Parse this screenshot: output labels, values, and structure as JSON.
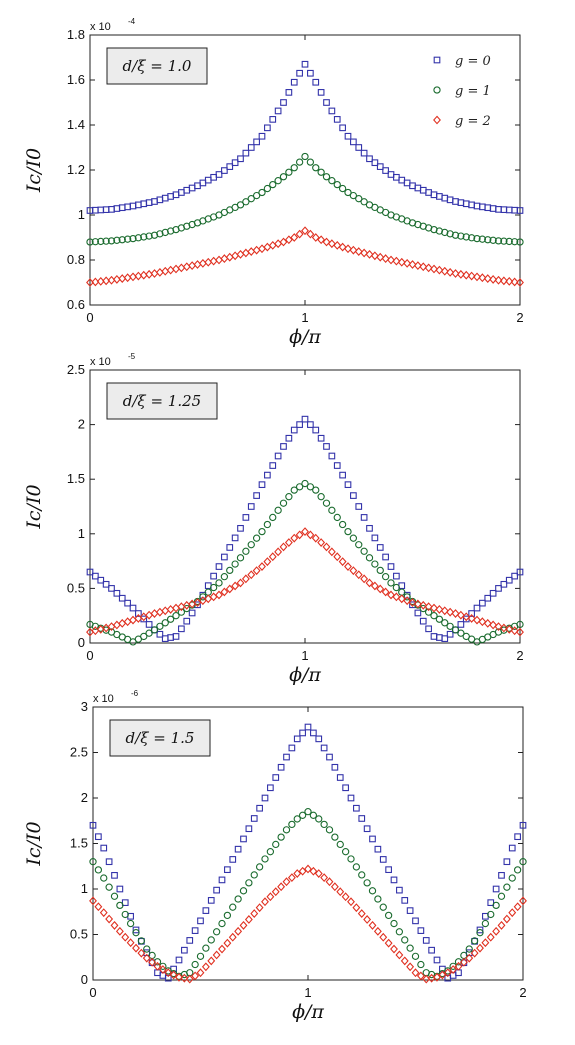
{
  "chart_data": [
    {
      "type": "scatter",
      "panel_label": "d/ξ = 1.0",
      "multiplier": "x 10",
      "exponent": "-4",
      "xlabel": "ϕ/π",
      "ylabel": "Ic/I0",
      "xlim": [
        0,
        2
      ],
      "ylim": [
        0.6,
        1.8
      ],
      "xticks": [
        0,
        1,
        2
      ],
      "yticks": [
        0.6,
        0.8,
        1.0,
        1.2,
        1.4,
        1.6,
        1.8
      ],
      "ytick_labels": [
        "0.6",
        "0.8",
        "1",
        "1.2",
        "1.4",
        "1.6",
        "1.8"
      ],
      "legend_position": "top-right",
      "series": [
        {
          "name": "g = 0",
          "marker": "square",
          "color": "#3333aa",
          "x": [
            0,
            0.1,
            0.2,
            0.3,
            0.4,
            0.5,
            0.6,
            0.7,
            0.8,
            0.9,
            0.95,
            1.0
          ],
          "values": [
            1.02,
            1.025,
            1.04,
            1.06,
            1.09,
            1.13,
            1.18,
            1.25,
            1.35,
            1.5,
            1.59,
            1.67
          ]
        },
        {
          "name": "g = 1",
          "marker": "circle",
          "color": "#1a6b2e",
          "x": [
            0,
            0.1,
            0.2,
            0.3,
            0.4,
            0.5,
            0.6,
            0.7,
            0.8,
            0.9,
            0.95,
            1.0
          ],
          "values": [
            0.88,
            0.885,
            0.895,
            0.91,
            0.935,
            0.965,
            1.0,
            1.045,
            1.1,
            1.17,
            1.21,
            1.26
          ]
        },
        {
          "name": "g = 2",
          "marker": "diamond",
          "color": "#e03020",
          "x": [
            0,
            0.1,
            0.2,
            0.3,
            0.4,
            0.5,
            0.6,
            0.7,
            0.8,
            0.9,
            0.95,
            1.0
          ],
          "values": [
            0.7,
            0.71,
            0.725,
            0.74,
            0.76,
            0.78,
            0.8,
            0.825,
            0.85,
            0.88,
            0.9,
            0.93
          ]
        }
      ]
    },
    {
      "type": "scatter",
      "panel_label": "d/ξ = 1.25",
      "multiplier": "x 10",
      "exponent": "-5",
      "xlabel": "ϕ/π",
      "ylabel": "Ic/I0",
      "xlim": [
        0,
        2
      ],
      "ylim": [
        0,
        2.5
      ],
      "xticks": [
        0,
        1,
        2
      ],
      "yticks": [
        0,
        0.5,
        1.0,
        1.5,
        2.0,
        2.5
      ],
      "ytick_labels": [
        "0",
        "0.5",
        "1",
        "1.5",
        "2",
        "2.5"
      ],
      "series": [
        {
          "name": "g = 0",
          "marker": "square",
          "color": "#3333aa",
          "x": [
            0,
            0.1,
            0.2,
            0.3,
            0.35,
            0.4,
            0.45,
            0.5,
            0.6,
            0.7,
            0.8,
            0.9,
            0.95,
            1.0
          ],
          "values": [
            0.65,
            0.5,
            0.32,
            0.12,
            0.04,
            0.06,
            0.2,
            0.35,
            0.7,
            1.05,
            1.45,
            1.8,
            1.95,
            2.05
          ]
        },
        {
          "name": "g = 1",
          "marker": "circle",
          "color": "#1a6b2e",
          "x": [
            0,
            0.1,
            0.2,
            0.25,
            0.3,
            0.4,
            0.5,
            0.6,
            0.7,
            0.8,
            0.9,
            0.95,
            1.0
          ],
          "values": [
            0.17,
            0.1,
            0.01,
            0.06,
            0.12,
            0.25,
            0.38,
            0.55,
            0.78,
            1.02,
            1.28,
            1.4,
            1.46
          ]
        },
        {
          "name": "g = 2",
          "marker": "diamond",
          "color": "#e03020",
          "x": [
            0,
            0.1,
            0.2,
            0.3,
            0.4,
            0.5,
            0.6,
            0.7,
            0.8,
            0.9,
            0.95,
            1.0
          ],
          "values": [
            0.1,
            0.15,
            0.21,
            0.27,
            0.32,
            0.37,
            0.44,
            0.55,
            0.7,
            0.88,
            0.96,
            1.02
          ]
        }
      ]
    },
    {
      "type": "scatter",
      "panel_label": "d/ξ = 1.5",
      "multiplier": "x 10",
      "exponent": "-6",
      "xlabel": "ϕ/π",
      "ylabel": "Ic/I0",
      "xlim": [
        0,
        2
      ],
      "ylim": [
        0,
        3
      ],
      "xticks": [
        0,
        1,
        2
      ],
      "yticks": [
        0,
        0.5,
        1.0,
        1.5,
        2.0,
        2.5,
        3.0
      ],
      "ytick_labels": [
        "0",
        "0.5",
        "1",
        "1.5",
        "2",
        "2.5",
        "3"
      ],
      "series": [
        {
          "name": "g = 0",
          "marker": "square",
          "color": "#3333aa",
          "x": [
            0,
            0.05,
            0.1,
            0.15,
            0.2,
            0.25,
            0.3,
            0.35,
            0.4,
            0.5,
            0.6,
            0.7,
            0.8,
            0.9,
            0.95,
            1.0
          ],
          "values": [
            1.7,
            1.45,
            1.15,
            0.85,
            0.55,
            0.3,
            0.08,
            0.02,
            0.22,
            0.65,
            1.1,
            1.55,
            2.0,
            2.45,
            2.65,
            2.78
          ]
        },
        {
          "name": "g = 1",
          "marker": "circle",
          "color": "#1a6b2e",
          "x": [
            0,
            0.05,
            0.1,
            0.15,
            0.2,
            0.25,
            0.3,
            0.35,
            0.4,
            0.45,
            0.5,
            0.6,
            0.7,
            0.8,
            0.9,
            0.95,
            1.0
          ],
          "values": [
            1.3,
            1.12,
            0.92,
            0.72,
            0.52,
            0.34,
            0.2,
            0.1,
            0.04,
            0.08,
            0.26,
            0.62,
            0.98,
            1.33,
            1.65,
            1.77,
            1.85
          ]
        },
        {
          "name": "g = 2",
          "marker": "diamond",
          "color": "#e03020",
          "x": [
            0,
            0.05,
            0.1,
            0.15,
            0.2,
            0.25,
            0.3,
            0.35,
            0.4,
            0.45,
            0.5,
            0.6,
            0.7,
            0.8,
            0.9,
            0.95,
            1.0
          ],
          "values": [
            0.87,
            0.74,
            0.6,
            0.47,
            0.35,
            0.24,
            0.15,
            0.08,
            0.03,
            0.01,
            0.08,
            0.34,
            0.6,
            0.86,
            1.08,
            1.17,
            1.22
          ]
        }
      ]
    }
  ]
}
